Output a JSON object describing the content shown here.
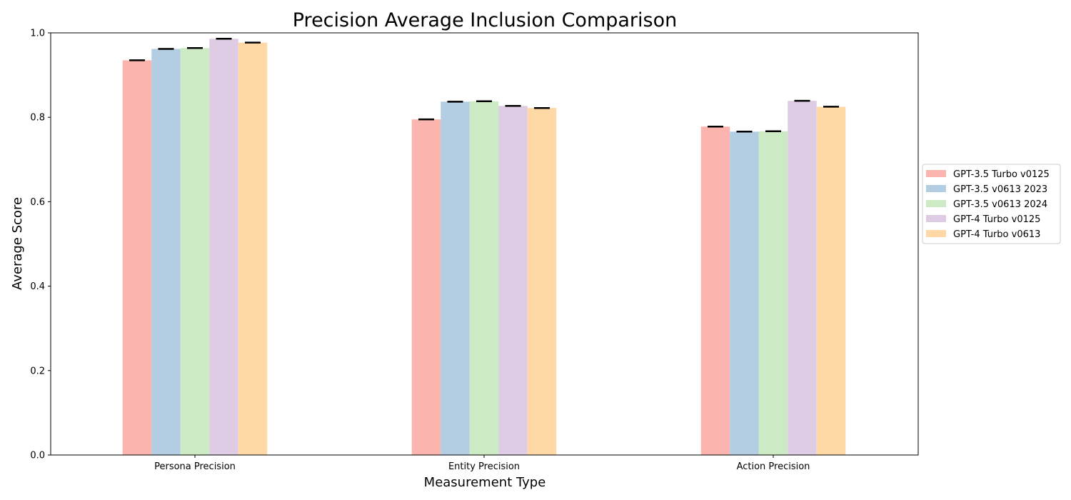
{
  "chart_data": {
    "type": "bar",
    "title": "Precision Average Inclusion Comparison",
    "xlabel": "Measurement Type",
    "ylabel": "Average Score",
    "ylim": [
      0,
      1.0
    ],
    "yticks": [
      "0.0",
      "0.2",
      "0.4",
      "0.6",
      "0.8",
      "1.0"
    ],
    "categories": [
      "Persona Precision",
      "Entity Precision",
      "Action Precision"
    ],
    "series": [
      {
        "name": "GPT-3.5 Turbo v0125",
        "color": "#fbb4ae",
        "values": [
          0.935,
          0.795,
          0.778
        ]
      },
      {
        "name": "GPT-3.5 v0613 2023",
        "color": "#b3cde3",
        "values": [
          0.962,
          0.837,
          0.766
        ]
      },
      {
        "name": "GPT-3.5 v0613 2024",
        "color": "#ccebc5",
        "values": [
          0.964,
          0.838,
          0.767
        ]
      },
      {
        "name": "GPT-4 Turbo v0125",
        "color": "#decbe4",
        "values": [
          0.986,
          0.827,
          0.839
        ]
      },
      {
        "name": "GPT-4 Turbo v0613",
        "color": "#fed9a6",
        "values": [
          0.977,
          0.822,
          0.825
        ]
      }
    ],
    "error_bar_color": "#000000",
    "legend_position": "outside-right",
    "grid": false
  }
}
